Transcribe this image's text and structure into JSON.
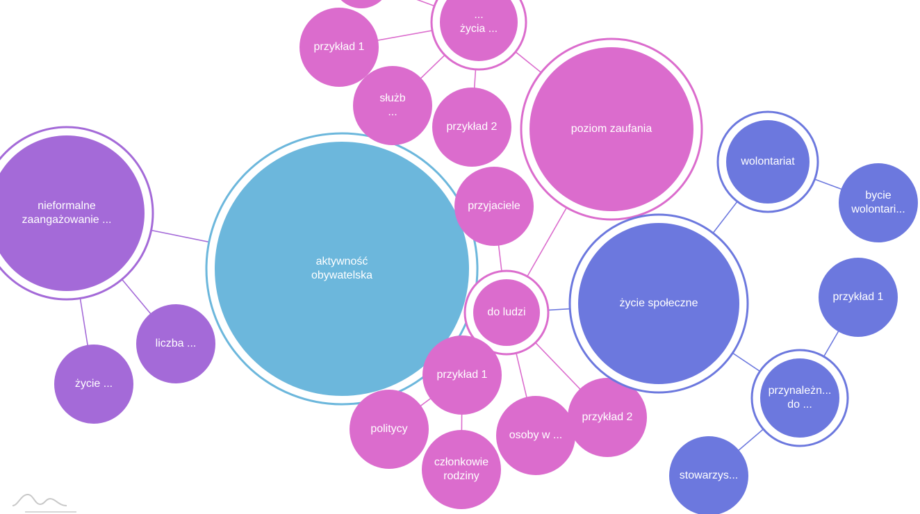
{
  "colors": {
    "center": "#6cb7dc",
    "pink": "#db6ccd",
    "purple": "#a46ad8",
    "blue": "#6c78de",
    "logo": "#c8c8c8"
  },
  "nodes": {
    "center": {
      "lines": [
        "aktywność",
        "obywatelska"
      ],
      "color": "center",
      "ring": true
    },
    "nieformalne": {
      "lines": [
        "nieformalne",
        "zaangażowanie ..."
      ],
      "color": "purple",
      "ring": true
    },
    "liczba": {
      "lines": [
        "liczba ..."
      ],
      "color": "purple",
      "ring": false
    },
    "zycie_purple": {
      "lines": [
        "życie ..."
      ],
      "color": "purple",
      "ring": false
    },
    "poziom": {
      "lines": [
        "poziom zaufania"
      ],
      "color": "pink",
      "ring": true
    },
    "zycia_top": {
      "lines": [
        "...",
        "życia ..."
      ],
      "color": "pink",
      "ring": true
    },
    "top_partial": {
      "lines": [],
      "color": "pink",
      "ring": false
    },
    "przyklad1_top": {
      "lines": [
        "przykład 1"
      ],
      "color": "pink",
      "ring": false
    },
    "sluzb": {
      "lines": [
        "służb",
        "..."
      ],
      "color": "pink",
      "ring": false
    },
    "przyklad2_top": {
      "lines": [
        "przykład 2"
      ],
      "color": "pink",
      "ring": false
    },
    "przyjaciele": {
      "lines": [
        "przyjaciele"
      ],
      "color": "pink",
      "ring": false
    },
    "do_ludzi": {
      "lines": [
        "do ludzi"
      ],
      "color": "pink",
      "ring": true
    },
    "przyklad1_bot": {
      "lines": [
        "przykład 1"
      ],
      "color": "pink",
      "ring": false
    },
    "politycy": {
      "lines": [
        "politycy"
      ],
      "color": "pink",
      "ring": false
    },
    "czlonkowie": {
      "lines": [
        "członkowie",
        "rodziny"
      ],
      "color": "pink",
      "ring": false
    },
    "osoby": {
      "lines": [
        "osoby w ..."
      ],
      "color": "pink",
      "ring": false
    },
    "przyklad2_bot": {
      "lines": [
        "przykład 2"
      ],
      "color": "pink",
      "ring": false
    },
    "zycie_spoleczne": {
      "lines": [
        "życie społeczne"
      ],
      "color": "blue",
      "ring": true
    },
    "wolontariat": {
      "lines": [
        "wolontariat"
      ],
      "color": "blue",
      "ring": true
    },
    "bycie": {
      "lines": [
        "bycie",
        "wolontari..."
      ],
      "color": "blue",
      "ring": false
    },
    "przyklad1_blue": {
      "lines": [
        "przykład 1"
      ],
      "color": "blue",
      "ring": false
    },
    "przynaleznosc": {
      "lines": [
        "przynależn...",
        "do ..."
      ],
      "color": "blue",
      "ring": true
    },
    "stowarzys": {
      "lines": [
        "stowarzys..."
      ],
      "color": "blue",
      "ring": false
    }
  },
  "edges": [
    [
      "center",
      "nieformalne",
      "purple"
    ],
    [
      "nieformalne",
      "liczba",
      "purple"
    ],
    [
      "nieformalne",
      "zycie_purple",
      "purple"
    ],
    [
      "center",
      "do_ludzi",
      "pink"
    ],
    [
      "do_ludzi",
      "poziom",
      "pink"
    ],
    [
      "do_ludzi",
      "przyjaciele",
      "pink"
    ],
    [
      "do_ludzi",
      "przyklad1_bot",
      "pink"
    ],
    [
      "do_ludzi",
      "osoby",
      "pink"
    ],
    [
      "do_ludzi",
      "przyklad2_bot",
      "pink"
    ],
    [
      "do_ludzi",
      "zycie_spoleczne",
      "blue"
    ],
    [
      "przyklad1_bot",
      "politycy",
      "pink"
    ],
    [
      "przyklad1_bot",
      "czlonkowie",
      "pink"
    ],
    [
      "poziom",
      "zycia_top",
      "pink"
    ],
    [
      "zycia_top",
      "przyklad1_top",
      "pink"
    ],
    [
      "zycia_top",
      "sluzb",
      "pink"
    ],
    [
      "zycia_top",
      "przyklad2_top",
      "pink"
    ],
    [
      "zycia_top",
      "top_partial",
      "pink"
    ],
    [
      "zycie_spoleczne",
      "wolontariat",
      "blue"
    ],
    [
      "zycie_spoleczne",
      "przynaleznosc",
      "blue"
    ],
    [
      "wolontariat",
      "bycie",
      "blue"
    ],
    [
      "przynaleznosc",
      "przyklad1_blue",
      "blue"
    ],
    [
      "przynaleznosc",
      "stowarzys",
      "blue"
    ]
  ],
  "logo": {
    "icon": "mountain-logo-icon"
  }
}
